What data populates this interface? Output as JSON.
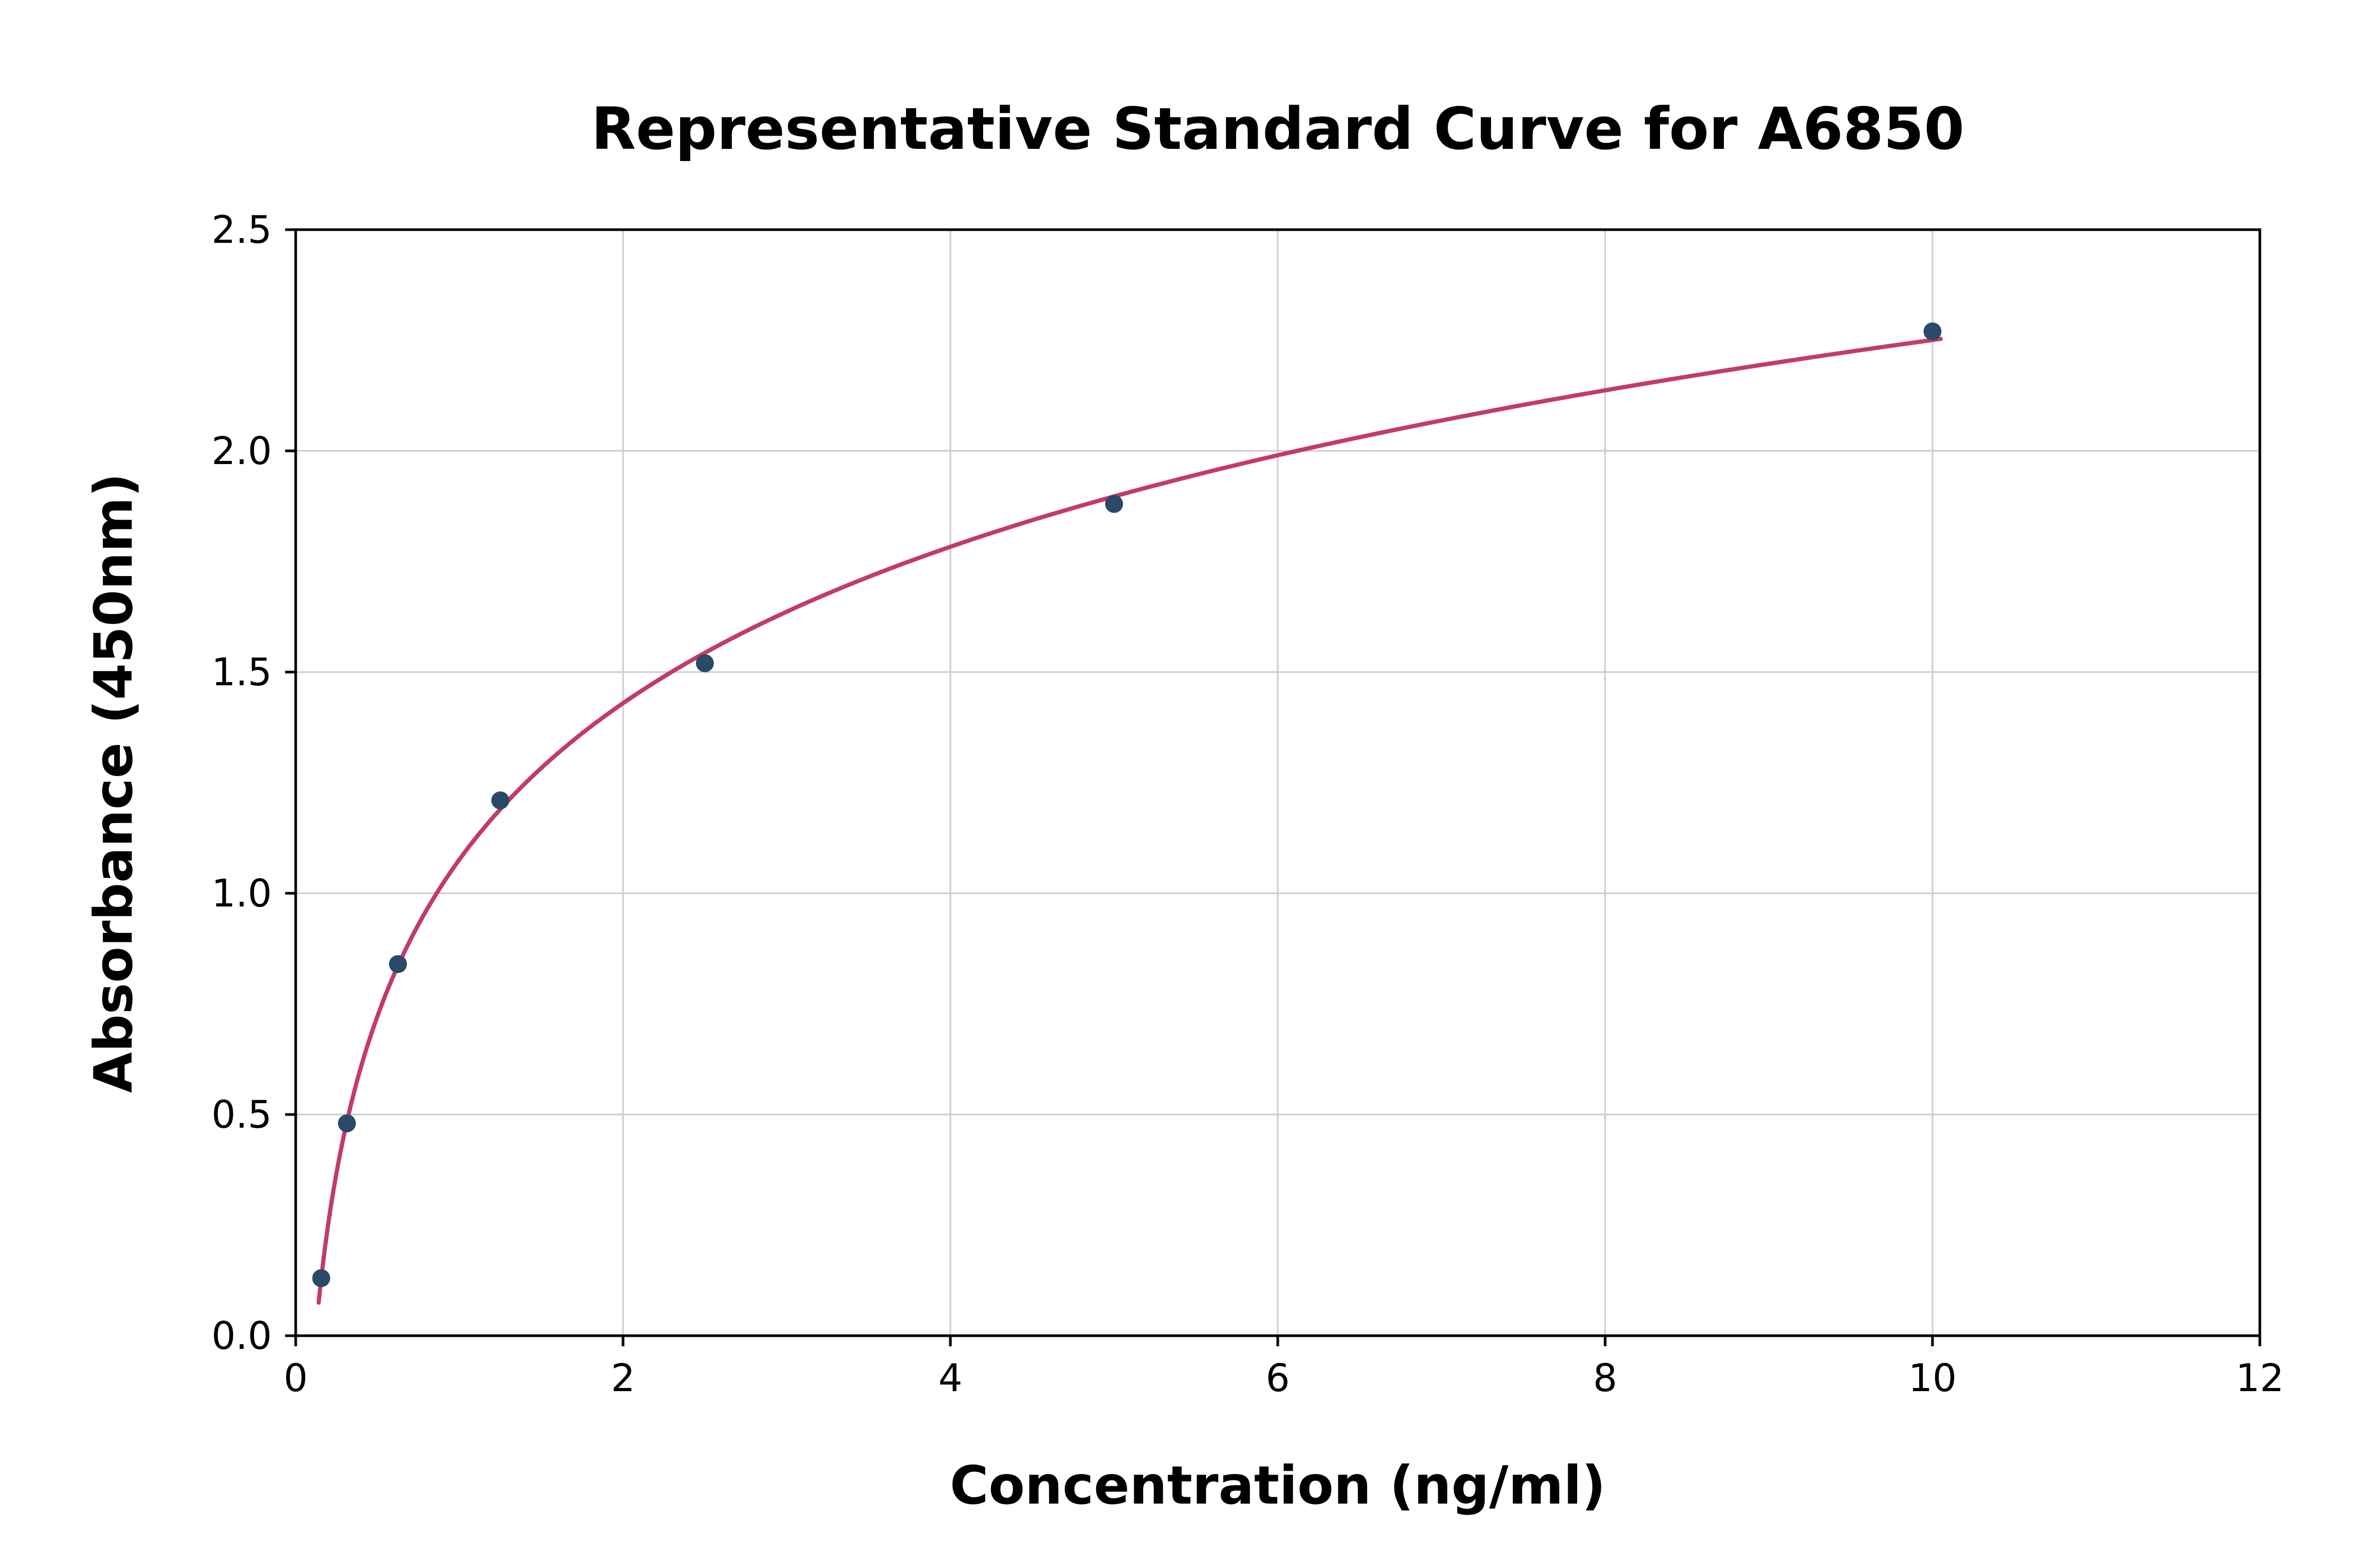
{
  "chart_data": {
    "type": "scatter",
    "title": "Representative Standard Curve for A6850",
    "xlabel": "Concentration (ng/ml)",
    "ylabel": "Absorbance (450nm)",
    "xlim": [
      0,
      12
    ],
    "ylim": [
      0,
      2.5
    ],
    "grid": true,
    "legend": "none",
    "x_tick_values": [
      0,
      2,
      4,
      6,
      8,
      10,
      12
    ],
    "x_ticks": [
      "0",
      "2",
      "4",
      "6",
      "8",
      "10",
      "12"
    ],
    "y_tick_values": [
      0,
      0.5,
      1.0,
      1.5,
      2.0,
      2.5
    ],
    "y_ticks": [
      "0.0",
      "0.5",
      "1.0",
      "1.5",
      "2.0",
      "2.5"
    ],
    "points": {
      "x": [
        0.156,
        0.313,
        0.625,
        1.25,
        2.5,
        5,
        10
      ],
      "y": [
        0.13,
        0.48,
        0.84,
        1.21,
        1.52,
        1.88,
        2.27
      ]
    },
    "fit_type": "logarithmic",
    "colors": {
      "point": "#2b4968",
      "curve": "#c13b6c",
      "grid": "#cccccc",
      "spine": "#000000",
      "text": "#000000"
    }
  }
}
